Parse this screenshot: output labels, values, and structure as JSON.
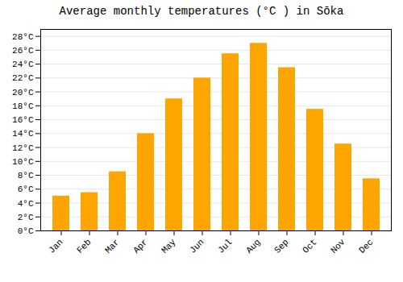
{
  "chart_data": {
    "type": "bar",
    "title": "Average monthly temperatures (°C ) in Sōka",
    "categories": [
      "Jan",
      "Feb",
      "Mar",
      "Apr",
      "May",
      "Jun",
      "Jul",
      "Aug",
      "Sep",
      "Oct",
      "Nov",
      "Dec"
    ],
    "values": [
      5.0,
      5.5,
      8.5,
      14.0,
      19.0,
      22.0,
      25.5,
      27.0,
      23.5,
      17.5,
      12.5,
      7.5
    ],
    "color": "#FFA500",
    "ylim": [
      0,
      29
    ],
    "yticks": [
      {
        "value": 0,
        "label": "0°C"
      },
      {
        "value": 2,
        "label": "2°C"
      },
      {
        "value": 4,
        "label": "4°C"
      },
      {
        "value": 6,
        "label": "6°C"
      },
      {
        "value": 8,
        "label": "8°C"
      },
      {
        "value": 10,
        "label": "10°C"
      },
      {
        "value": 12,
        "label": "12°C"
      },
      {
        "value": 14,
        "label": "14°C"
      },
      {
        "value": 16,
        "label": "16°C"
      },
      {
        "value": 18,
        "label": "18°C"
      },
      {
        "value": 20,
        "label": "20°C"
      },
      {
        "value": 22,
        "label": "22°C"
      },
      {
        "value": 24,
        "label": "24°C"
      },
      {
        "value": 26,
        "label": "26°C"
      },
      {
        "value": 28,
        "label": "28°C"
      }
    ],
    "grid": true
  }
}
